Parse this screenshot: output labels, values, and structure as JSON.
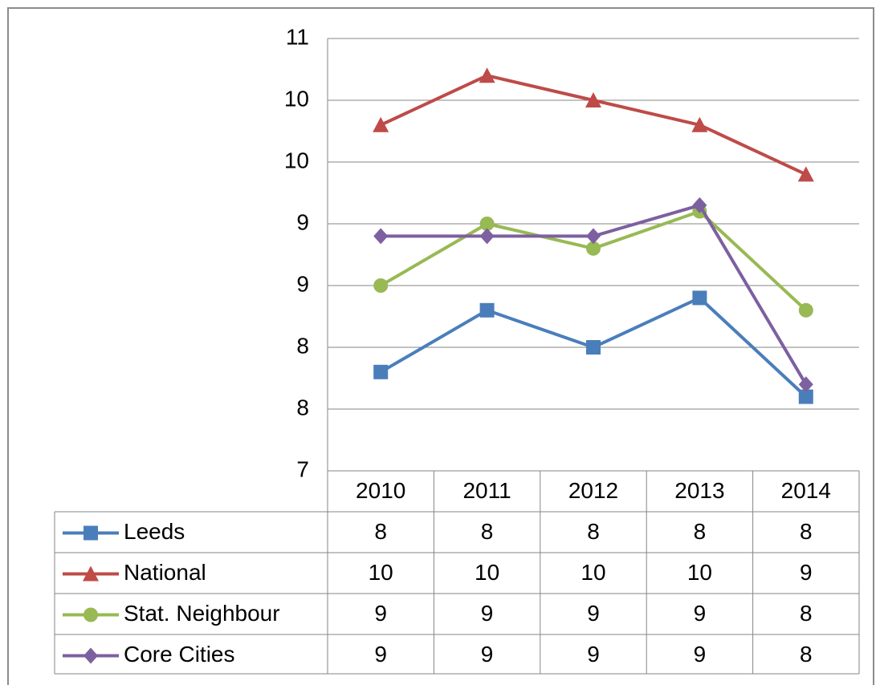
{
  "chart_data": {
    "type": "line",
    "categories": [
      "2010",
      "2011",
      "2012",
      "2013",
      "2014"
    ],
    "series": [
      {
        "name": "Leeds",
        "color": "#4a7ebb",
        "marker": "square",
        "values": [
          7.8,
          8.3,
          8.0,
          8.4,
          7.6
        ],
        "value_labels": [
          "8",
          "8",
          "8",
          "8",
          "8"
        ]
      },
      {
        "name": "National",
        "color": "#be4b48",
        "marker": "triangle",
        "values": [
          9.8,
          10.2,
          10.0,
          9.8,
          9.4
        ],
        "value_labels": [
          "10",
          "10",
          "10",
          "10",
          "9"
        ]
      },
      {
        "name": "Stat. Neighbour",
        "color": "#98b954",
        "marker": "circle",
        "values": [
          8.5,
          9.0,
          8.8,
          9.1,
          8.3
        ],
        "value_labels": [
          "9",
          "9",
          "9",
          "9",
          "8"
        ]
      },
      {
        "name": "Core Cities",
        "color": "#7d60a0",
        "marker": "diamond",
        "values": [
          8.9,
          8.9,
          8.9,
          9.15,
          7.7
        ],
        "value_labels": [
          "9",
          "9",
          "9",
          "9",
          "8"
        ]
      }
    ],
    "ylim": [
      7,
      10.5
    ],
    "yticks": [
      7,
      {
        "value": 7.5,
        "label": "8"
      },
      8,
      {
        "value": 8.5,
        "label": "9"
      },
      9,
      {
        "value": 9.5,
        "label": "10"
      },
      10,
      {
        "value": 10.5,
        "label": "11"
      }
    ],
    "grid": true
  }
}
